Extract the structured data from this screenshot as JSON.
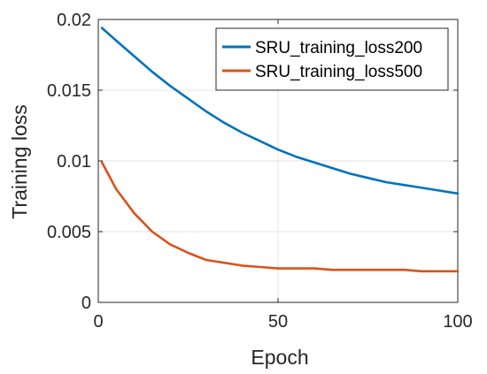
{
  "chart_data": {
    "type": "line",
    "xlabel": "Epoch",
    "ylabel": "Training loss",
    "xlim": [
      0,
      100
    ],
    "ylim": [
      0,
      0.02
    ],
    "xticks": [
      0,
      50,
      100
    ],
    "xtick_labels": [
      "0",
      "50",
      "100"
    ],
    "yticks": [
      0,
      0.005,
      0.01,
      0.015,
      0.02
    ],
    "ytick_labels": [
      "0",
      "0.005",
      "0.01",
      "0.015",
      "0.02"
    ],
    "grid": true,
    "legend_position": "top-right",
    "x": [
      1,
      5,
      10,
      15,
      20,
      25,
      30,
      35,
      40,
      45,
      50,
      55,
      60,
      65,
      70,
      75,
      80,
      85,
      90,
      95,
      100
    ],
    "series": [
      {
        "name": "SRU_training_loss200",
        "color": "#0072BD",
        "values": [
          0.0194,
          0.0185,
          0.0174,
          0.0163,
          0.0153,
          0.0144,
          0.0135,
          0.0127,
          0.012,
          0.0114,
          0.0108,
          0.0103,
          0.0099,
          0.0095,
          0.0091,
          0.0088,
          0.0085,
          0.0083,
          0.0081,
          0.0079,
          0.0077
        ]
      },
      {
        "name": "SRU_training_loss500",
        "color": "#D95319",
        "values": [
          0.0099,
          0.008,
          0.0063,
          0.005,
          0.0041,
          0.0035,
          0.003,
          0.0028,
          0.0026,
          0.0025,
          0.0024,
          0.0024,
          0.0024,
          0.0023,
          0.0023,
          0.0023,
          0.0023,
          0.0023,
          0.0022,
          0.0022,
          0.0022
        ]
      }
    ]
  }
}
